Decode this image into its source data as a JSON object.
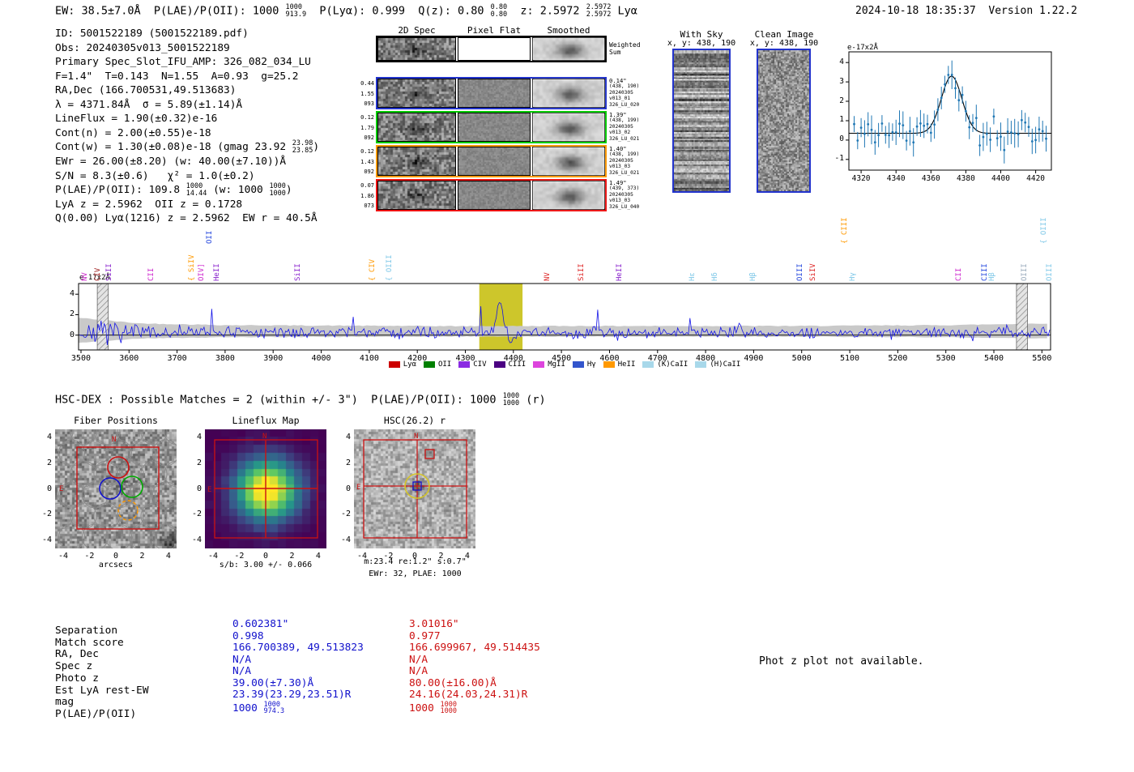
{
  "header": {
    "segments": [
      {
        "t": "EW: 38.5±7.0Å  P(LAE)/P(OII): 1000 "
      },
      {
        "frac": [
          "1000",
          "913.9"
        ]
      },
      {
        "t": "  P(Lyα): 0.999  Q(z): 0.80 "
      },
      {
        "frac": [
          "0.80",
          "0.80"
        ]
      },
      {
        "t": "  z: 2.5972 "
      },
      {
        "frac": [
          "2.5972",
          "2.5972"
        ]
      },
      {
        "t": " Lyα"
      }
    ],
    "timestamp": "2024-10-18 18:35:37",
    "version": "Version 1.22.2"
  },
  "info": {
    "lines": [
      [
        {
          "t": "ID: 5001522189 (5001522189.pdf)"
        }
      ],
      [
        {
          "t": "Obs: 20240305v013_5001522189"
        }
      ],
      [
        {
          "t": "Primary Spec_Slot_IFU_AMP: 326_082_034_LU"
        }
      ],
      [
        {
          "t": "F=1.4\"  T=0.143  N=1.55  A=0.93  g=25.2"
        }
      ],
      [
        {
          "t": "RA,Dec (166.700531,49.513683)"
        }
      ],
      [
        {
          "t": "λ = 4371.84Å  σ = 5.89(±1.14)Å"
        }
      ],
      [
        {
          "t": "LineFlux = 1.90(±0.32)e-16"
        }
      ],
      [
        {
          "t": "Cont(n) = 2.00(±0.55)e-18"
        }
      ],
      [
        {
          "t": "Cont(w) = 1.30(±0.08)e-18 (gmag 23.92 "
        },
        {
          "frac": [
            "23.98",
            "23.85"
          ]
        },
        {
          "t": ")"
        }
      ],
      [
        {
          "t": "EWr = 26.00(±8.20) (w: 40.00(±7.10))Å"
        }
      ],
      [
        {
          "t": "S/N = 8.3(±0.6)   χ² = 1.0(±0.2)"
        }
      ],
      [
        {
          "t": "P(LAE)/P(OII): 109.8 "
        },
        {
          "frac": [
            "1000",
            "14.44"
          ]
        },
        {
          "t": " (w: 1000 "
        },
        {
          "frac": [
            "1000",
            "1000"
          ]
        },
        {
          "t": ")"
        }
      ],
      [
        {
          "t": "LyA z = 2.5962  OII z = 0.1728"
        }
      ],
      [
        {
          "t": "Q(0.00) Lyα(1216) z = 2.5962  EW r = 40.5Å"
        }
      ]
    ]
  },
  "spec2d": {
    "col_headers": [
      "2D Spec",
      "Pixel Flat",
      "Smoothed"
    ],
    "rows": [
      {
        "color": "#000000",
        "left": [],
        "right": [
          "Weighted",
          "Sum"
        ],
        "weighted": true
      },
      {
        "color": "#2233cc",
        "left": [
          "0.44",
          "1.55",
          "093"
        ],
        "right": [
          "0.14\"",
          "(438, 190)",
          "20240305",
          "v013_01",
          "326_LU_020"
        ]
      },
      {
        "color": "#00cc00",
        "left": [
          "0.12",
          "1.79",
          "092"
        ],
        "right": [
          "1.39\"",
          "(438, 199)",
          "20240305",
          "v013_02",
          "326_LU_021"
        ]
      },
      {
        "color": "#ff9900",
        "left": [
          "0.12",
          "1.43",
          "092"
        ],
        "right": [
          "1.40\"",
          "(438, 199)",
          "20240305",
          "v013_03",
          "326_LU_021"
        ]
      },
      {
        "color": "#ee1111",
        "left": [
          "0.07",
          "1.86",
          "073"
        ],
        "right": [
          "1.49\"",
          "(439, 373)",
          "20240305",
          "v013_03",
          "326_LU_040"
        ]
      }
    ]
  },
  "sky_panels": {
    "with_sky": {
      "title": "With Sky",
      "coords": "x, y: 438, 190"
    },
    "clean": {
      "title": "Clean Image",
      "coords": "x, y: 438, 190"
    }
  },
  "hscdex": {
    "segments": [
      {
        "t": "HSC-DEX : Possible Matches = 2 (within +/- 3\")  P(LAE)/P(OII): 1000 "
      },
      {
        "frac": [
          "1000",
          "1000"
        ]
      },
      {
        "t": " (r)"
      }
    ]
  },
  "cutouts": {
    "yticks": [
      "4",
      "2",
      "0",
      "-2",
      "-4"
    ],
    "xticks": [
      "-4",
      "-2",
      "0",
      "2",
      "4"
    ],
    "fiber_positions": {
      "title": "Fiber Positions",
      "xlabel": "arcsecs",
      "north": "N",
      "east": "E"
    },
    "lineflux_map": {
      "title": "Lineflux Map",
      "caption": "s/b: 3.00 +/- 0.066",
      "north": "N",
      "east": "E"
    },
    "hsc": {
      "title": "HSC(26.2) r",
      "caption1": "m:23.4 re:1.2\" s:0.7\"",
      "caption2": "EWr: 32, PLAE: 1000",
      "north": "N",
      "east": "E"
    }
  },
  "match_table": {
    "row_labels": [
      "Separation",
      "Match score",
      "RA, Dec",
      "Spec z",
      "Photo z",
      "Est LyA rest-EW",
      "mag",
      "P(LAE)/P(OII)"
    ],
    "columns": [
      {
        "color": "#1111cc",
        "values": [
          "0.602381\"",
          "0.998",
          "166.700389, 49.513823",
          "N/A",
          "N/A",
          "39.00(±7.30)Å",
          "23.39(23.29,23.51)R"
        ],
        "plae": "1000 ",
        "plae_frac": [
          "1000",
          "974.3"
        ]
      },
      {
        "color": "#cc1111",
        "values": [
          "3.01016\"",
          "0.977",
          "166.699967, 49.514435",
          "N/A",
          "N/A",
          "80.00(±16.00)Å",
          "24.16(24.03,24.31)R"
        ],
        "plae": "1000 ",
        "plae_frac": [
          "1000",
          "1000"
        ]
      }
    ]
  },
  "photz_note": "Phot z plot not available.",
  "chart_data": [
    {
      "id": "full_spectrum",
      "type": "line",
      "units_label": "e-17x2Å",
      "xlim": [
        3495,
        5518
      ],
      "ylim": [
        -1.45,
        5.05
      ],
      "xticks": [
        3500,
        3600,
        3700,
        3800,
        3900,
        4000,
        4100,
        4200,
        4300,
        4400,
        4500,
        4600,
        4700,
        4800,
        4900,
        5000,
        5100,
        5200,
        5300,
        5400,
        5500
      ],
      "yticks": [
        0,
        2,
        4
      ],
      "line_color": "#1515e8",
      "error_band_color": "#c9c9c9",
      "baseline": 0.3,
      "highlight_region": {
        "x0": 4329,
        "x1": 4419,
        "color": "#cdc62b"
      },
      "hatched_regions": [
        [
          3534,
          3557
        ],
        [
          5447,
          5470
        ]
      ],
      "peak": {
        "center": 4371.84,
        "sigma": 6.2,
        "amplitude": 3.35
      },
      "dip": {
        "center": 4396,
        "sigma": 5,
        "amplitude": -1.05
      },
      "emission_labels": [
        {
          "text": "NV",
          "wl": 3507,
          "color": "#cc22cc"
        },
        {
          "text": "CIV",
          "wl": 3534,
          "color": "#991111"
        },
        {
          "text": "SiII",
          "wl": 3557,
          "color": "#8822cc"
        },
        {
          "text": "CII",
          "wl": 3645,
          "color": "#cc22cc"
        },
        {
          "text": "SiIV",
          "wl": 3730,
          "color": "#ff9900",
          "bracket": true
        },
        {
          "text": "OIV]",
          "wl": 3750,
          "color": "#cc22cc"
        },
        {
          "text": "OII",
          "wl": 3767,
          "color": "#2244dd",
          "raise": 46
        },
        {
          "text": "HeII",
          "wl": 3781,
          "color": "#8822cc"
        },
        {
          "text": "SiII",
          "wl": 3950,
          "color": "#8822cc"
        },
        {
          "text": "CIV",
          "wl": 4105,
          "color": "#ff9900",
          "bracket": true
        },
        {
          "text": "OIII",
          "wl": 4140,
          "color": "#7fc8e8",
          "bracket": true
        },
        {
          "text": "NV",
          "wl": 4470,
          "color": "#dd2222"
        },
        {
          "text": "SiII",
          "wl": 4540,
          "color": "#dd2222"
        },
        {
          "text": "HeII",
          "wl": 4620,
          "color": "#8822cc"
        },
        {
          "text": "Hε",
          "wl": 4772,
          "color": "#7fc8e8"
        },
        {
          "text": "Hδ",
          "wl": 4818,
          "color": "#7fc8e8"
        },
        {
          "text": "Hβ",
          "wl": 4898,
          "color": "#7fc8e8"
        },
        {
          "text": "OIII",
          "wl": 4995,
          "color": "#2244dd"
        },
        {
          "text": "SiIV",
          "wl": 5022,
          "color": "#dd2222"
        },
        {
          "text": "CIII",
          "wl": 5088,
          "color": "#ff9900",
          "bracket": true,
          "raise": 46
        },
        {
          "text": "Hγ",
          "wl": 5105,
          "color": "#7fc8e8"
        },
        {
          "text": "CII",
          "wl": 5325,
          "color": "#cc22cc"
        },
        {
          "text": "CIII",
          "wl": 5380,
          "color": "#2244dd"
        },
        {
          "text": "Hβ",
          "wl": 5395,
          "color": "#7fc8e8"
        },
        {
          "text": "OIII",
          "wl": 5462,
          "color": "#99aabb"
        },
        {
          "text": "OIII",
          "wl": 5502,
          "color": "#7fc8e8",
          "bracket": true,
          "raise": 46
        },
        {
          "text": "OIII",
          "wl": 5514,
          "color": "#7fc8e8"
        }
      ],
      "legend": [
        {
          "label": "Lyα",
          "color": "#cc0000"
        },
        {
          "label": "OII",
          "color": "#008000"
        },
        {
          "label": "CIV",
          "color": "#8a2be2"
        },
        {
          "label": "CIII",
          "color": "#4b0082"
        },
        {
          "label": "MgII",
          "color": "#dd44dd"
        },
        {
          "label": "Hγ",
          "color": "#3355cc"
        },
        {
          "label": "HeII",
          "color": "#ff9900"
        },
        {
          "label": "(K)CaII",
          "color": "#a8d8ea"
        },
        {
          "label": "(H)CaII",
          "color": "#a8d8ea"
        }
      ]
    },
    {
      "id": "line_fit",
      "type": "scatter",
      "units_label": "e-17x2Å",
      "xlim": [
        4313,
        4429
      ],
      "ylim": [
        -1.55,
        4.55
      ],
      "xticks": [
        4320,
        4340,
        4360,
        4380,
        4400,
        4420
      ],
      "yticks": [
        -1,
        0,
        1,
        2,
        3,
        4
      ],
      "marker_color": "#1f77b4",
      "fit_color": "#000000",
      "fit": {
        "center": 4371.84,
        "sigma": 5.89,
        "amplitude": 2.95,
        "baseline": 0.35
      },
      "point_step": 2,
      "noise_sigma": 0.42,
      "error_bar": 0.55
    },
    {
      "id": "lineflux_map",
      "type": "heatmap",
      "x_range": [
        -4.5,
        4.5
      ],
      "y_range": [
        -4.5,
        4.5
      ],
      "peak": {
        "x": 0.1,
        "y": -0.1,
        "sigma": 1.5
      },
      "colormap": "viridis",
      "caption": "s/b: 3.00 +/- 0.066"
    }
  ]
}
